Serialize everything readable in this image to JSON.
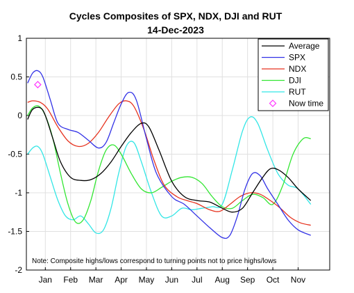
{
  "chart_data": {
    "type": "line",
    "title": "Cycles Composites of SPX, NDX, DJI and RUT",
    "subtitle": "14-Dec-2023",
    "xlabel": "",
    "ylabel": "",
    "x": [
      "Jan",
      "Feb",
      "Mar",
      "Apr",
      "May",
      "Jun",
      "Jul",
      "Aug",
      "Sep",
      "Oct",
      "Nov"
    ],
    "xlim": [
      -0.75,
      11.25
    ],
    "ylim": [
      -2,
      1
    ],
    "yticks": [
      1,
      0.5,
      0,
      -0.5,
      -1,
      -1.5,
      -2
    ],
    "ytick_labels": [
      "1",
      "0.5",
      "0",
      "-0.5",
      "-1",
      "-1.5",
      "-2"
    ],
    "grid": true,
    "legend_position": "top-right",
    "series": [
      {
        "name": "Average",
        "color": "#000000",
        "points": [
          [
            -0.7,
            -0.05
          ],
          [
            -0.5,
            0.08
          ],
          [
            -0.2,
            0.1
          ],
          [
            0,
            0.0
          ],
          [
            0.3,
            -0.3
          ],
          [
            0.6,
            -0.6
          ],
          [
            1,
            -0.8
          ],
          [
            1.4,
            -0.84
          ],
          [
            1.8,
            -0.83
          ],
          [
            2.2,
            -0.75
          ],
          [
            2.6,
            -0.6
          ],
          [
            3,
            -0.4
          ],
          [
            3.4,
            -0.22
          ],
          [
            3.8,
            -0.1
          ],
          [
            4.1,
            -0.15
          ],
          [
            4.5,
            -0.45
          ],
          [
            5,
            -0.85
          ],
          [
            5.5,
            -1.05
          ],
          [
            6,
            -1.1
          ],
          [
            6.5,
            -1.12
          ],
          [
            7,
            -1.2
          ],
          [
            7.4,
            -1.25
          ],
          [
            7.8,
            -1.2
          ],
          [
            8.2,
            -1.0
          ],
          [
            8.6,
            -0.8
          ],
          [
            8.9,
            -0.69
          ],
          [
            9.2,
            -0.7
          ],
          [
            9.6,
            -0.8
          ],
          [
            10,
            -0.95
          ],
          [
            10.5,
            -1.1
          ]
        ]
      },
      {
        "name": "SPX",
        "color": "#3232e6",
        "points": [
          [
            -0.7,
            0.42
          ],
          [
            -0.5,
            0.55
          ],
          [
            -0.3,
            0.58
          ],
          [
            -0.1,
            0.5
          ],
          [
            0.2,
            0.2
          ],
          [
            0.5,
            -0.1
          ],
          [
            0.9,
            -0.18
          ],
          [
            1.3,
            -0.22
          ],
          [
            1.7,
            -0.32
          ],
          [
            2.1,
            -0.42
          ],
          [
            2.4,
            -0.35
          ],
          [
            2.7,
            -0.1
          ],
          [
            3,
            0.15
          ],
          [
            3.3,
            0.3
          ],
          [
            3.6,
            0.2
          ],
          [
            4,
            -0.3
          ],
          [
            4.4,
            -0.75
          ],
          [
            5,
            -1.05
          ],
          [
            5.5,
            -1.15
          ],
          [
            6,
            -1.3
          ],
          [
            6.5,
            -1.45
          ],
          [
            7,
            -1.58
          ],
          [
            7.3,
            -1.55
          ],
          [
            7.6,
            -1.3
          ],
          [
            7.9,
            -0.95
          ],
          [
            8.2,
            -0.75
          ],
          [
            8.5,
            -0.78
          ],
          [
            8.8,
            -0.95
          ],
          [
            9.2,
            -1.15
          ],
          [
            9.6,
            -1.35
          ],
          [
            10,
            -1.48
          ],
          [
            10.5,
            -1.55
          ]
        ]
      },
      {
        "name": "NDX",
        "color": "#e6321e",
        "points": [
          [
            -0.7,
            0.17
          ],
          [
            -0.5,
            0.19
          ],
          [
            -0.2,
            0.17
          ],
          [
            0.1,
            0.08
          ],
          [
            0.5,
            -0.15
          ],
          [
            0.9,
            -0.33
          ],
          [
            1.3,
            -0.4
          ],
          [
            1.7,
            -0.36
          ],
          [
            2.1,
            -0.22
          ],
          [
            2.5,
            -0.02
          ],
          [
            2.9,
            0.15
          ],
          [
            3.2,
            0.19
          ],
          [
            3.5,
            0.12
          ],
          [
            3.9,
            -0.18
          ],
          [
            4.3,
            -0.58
          ],
          [
            4.7,
            -0.9
          ],
          [
            5.2,
            -1.05
          ],
          [
            5.6,
            -1.1
          ],
          [
            6,
            -1.14
          ],
          [
            6.5,
            -1.22
          ],
          [
            6.9,
            -1.24
          ],
          [
            7.3,
            -1.15
          ],
          [
            7.7,
            -1.05
          ],
          [
            8.1,
            -1.0
          ],
          [
            8.5,
            -1.02
          ],
          [
            8.9,
            -1.1
          ],
          [
            9.3,
            -1.2
          ],
          [
            9.7,
            -1.32
          ],
          [
            10.1,
            -1.39
          ],
          [
            10.5,
            -1.42
          ]
        ]
      },
      {
        "name": "DJI",
        "color": "#32e632",
        "points": [
          [
            -0.7,
            0.0
          ],
          [
            -0.5,
            0.1
          ],
          [
            -0.25,
            0.12
          ],
          [
            0,
            0.0
          ],
          [
            0.3,
            -0.3
          ],
          [
            0.6,
            -0.75
          ],
          [
            0.9,
            -1.15
          ],
          [
            1.2,
            -1.38
          ],
          [
            1.5,
            -1.35
          ],
          [
            1.8,
            -1.1
          ],
          [
            2.1,
            -0.72
          ],
          [
            2.4,
            -0.45
          ],
          [
            2.7,
            -0.38
          ],
          [
            3,
            -0.5
          ],
          [
            3.4,
            -0.75
          ],
          [
            3.8,
            -0.95
          ],
          [
            4.2,
            -1.0
          ],
          [
            4.6,
            -0.93
          ],
          [
            5,
            -0.85
          ],
          [
            5.4,
            -0.8
          ],
          [
            5.8,
            -0.8
          ],
          [
            6.2,
            -0.88
          ],
          [
            6.6,
            -1.05
          ],
          [
            7,
            -1.18
          ],
          [
            7.4,
            -1.2
          ],
          [
            7.8,
            -1.1
          ],
          [
            8.2,
            -1.02
          ],
          [
            8.6,
            -1.06
          ],
          [
            9,
            -1.15
          ],
          [
            9.4,
            -0.9
          ],
          [
            9.8,
            -0.5
          ],
          [
            10.2,
            -0.3
          ],
          [
            10.5,
            -0.3
          ]
        ]
      },
      {
        "name": "RUT",
        "color": "#32e6e6",
        "points": [
          [
            -0.7,
            -0.5
          ],
          [
            -0.5,
            -0.42
          ],
          [
            -0.3,
            -0.4
          ],
          [
            -0.1,
            -0.5
          ],
          [
            0.2,
            -0.8
          ],
          [
            0.5,
            -1.1
          ],
          [
            0.8,
            -1.3
          ],
          [
            1.1,
            -1.35
          ],
          [
            1.4,
            -1.3
          ],
          [
            1.7,
            -1.4
          ],
          [
            2,
            -1.52
          ],
          [
            2.3,
            -1.48
          ],
          [
            2.6,
            -1.2
          ],
          [
            2.9,
            -0.75
          ],
          [
            3.2,
            -0.4
          ],
          [
            3.5,
            -0.35
          ],
          [
            3.8,
            -0.6
          ],
          [
            4.2,
            -1.0
          ],
          [
            4.6,
            -1.3
          ],
          [
            5,
            -1.3
          ],
          [
            5.4,
            -1.2
          ],
          [
            5.8,
            -1.22
          ],
          [
            6.2,
            -1.2
          ],
          [
            6.6,
            -1.18
          ],
          [
            7,
            -1.15
          ],
          [
            7.4,
            -0.7
          ],
          [
            7.8,
            -0.2
          ],
          [
            8.1,
            -0.02
          ],
          [
            8.4,
            -0.1
          ],
          [
            8.8,
            -0.45
          ],
          [
            9.2,
            -0.75
          ],
          [
            9.6,
            -0.9
          ],
          [
            10,
            -0.95
          ],
          [
            10.5,
            -1.15
          ]
        ]
      }
    ],
    "marker": {
      "name": "Now time",
      "color": "#ff32ff",
      "x": -0.3,
      "y": 0.4
    },
    "note": "Note: Composite highs/lows correspond to turning points not to price highs/lows"
  }
}
